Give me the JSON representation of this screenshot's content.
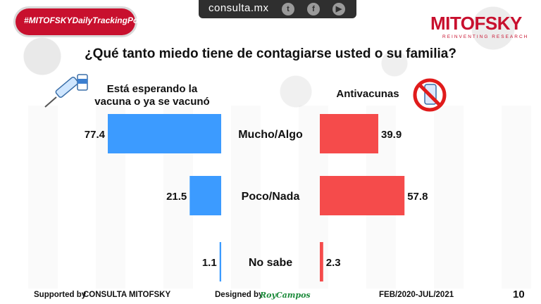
{
  "header_bar": {
    "site": "consulta.mx",
    "social_icons": [
      "twitter-icon",
      "facebook-icon",
      "youtube-icon"
    ]
  },
  "badge": {
    "text": "#MITOFSKYDailyTrackingPoll"
  },
  "logo": {
    "name": "MITOFSKY",
    "tagline": "REINVENTING RESEARCH"
  },
  "title": "¿Qué tanto miedo tiene de contagiarse usted o su familia?",
  "colors": {
    "left": "#3c9bff",
    "right": "#f54b4b",
    "brand": "#c8102e"
  },
  "chart_data": {
    "type": "bar",
    "title": "¿Qué tanto miedo tiene de contagiarse usted o su familia?",
    "categories": [
      "Mucho/Algo",
      "Poco/Nada",
      "No sabe"
    ],
    "series": [
      {
        "name": "Está esperando la vacuna o ya se vacunó",
        "values": [
          77.4,
          21.5,
          1.1
        ],
        "color": "#3c9bff",
        "direction": "left"
      },
      {
        "name": "Antivacunas",
        "values": [
          39.9,
          57.8,
          2.3
        ],
        "color": "#f54b4b",
        "direction": "right"
      }
    ],
    "layout": "diverging-butterfly",
    "grid": false,
    "legend": "column headers above bars"
  },
  "footer": {
    "supported": "Supported by",
    "consulta": "CONSULTA MITOFSKY",
    "designed": "Designed by",
    "designer": "RoyCampos",
    "dates": "FEB/2020-JUL/2021",
    "page": "10"
  }
}
